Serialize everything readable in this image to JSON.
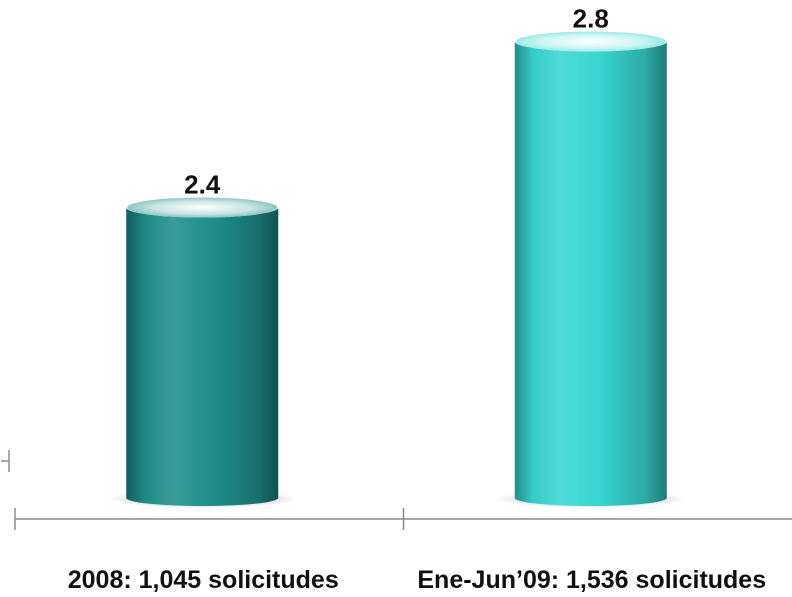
{
  "chart_data": {
    "type": "bar",
    "style": "3d-cylinder",
    "categories": [
      "2008: 1,045 solicitudes",
      "Ene-Jun’09: 1,536 solicitudes"
    ],
    "values": [
      2.4,
      2.8
    ],
    "value_labels": [
      "2.4",
      "2.8"
    ],
    "title": "",
    "xlabel": "",
    "ylabel": "",
    "ylim": [
      1.7,
      2.9
    ],
    "grid": false,
    "legend": "none",
    "colors": [
      "#1f8f8a",
      "#38d6d2"
    ],
    "axis_color": "#8a8a8a"
  }
}
